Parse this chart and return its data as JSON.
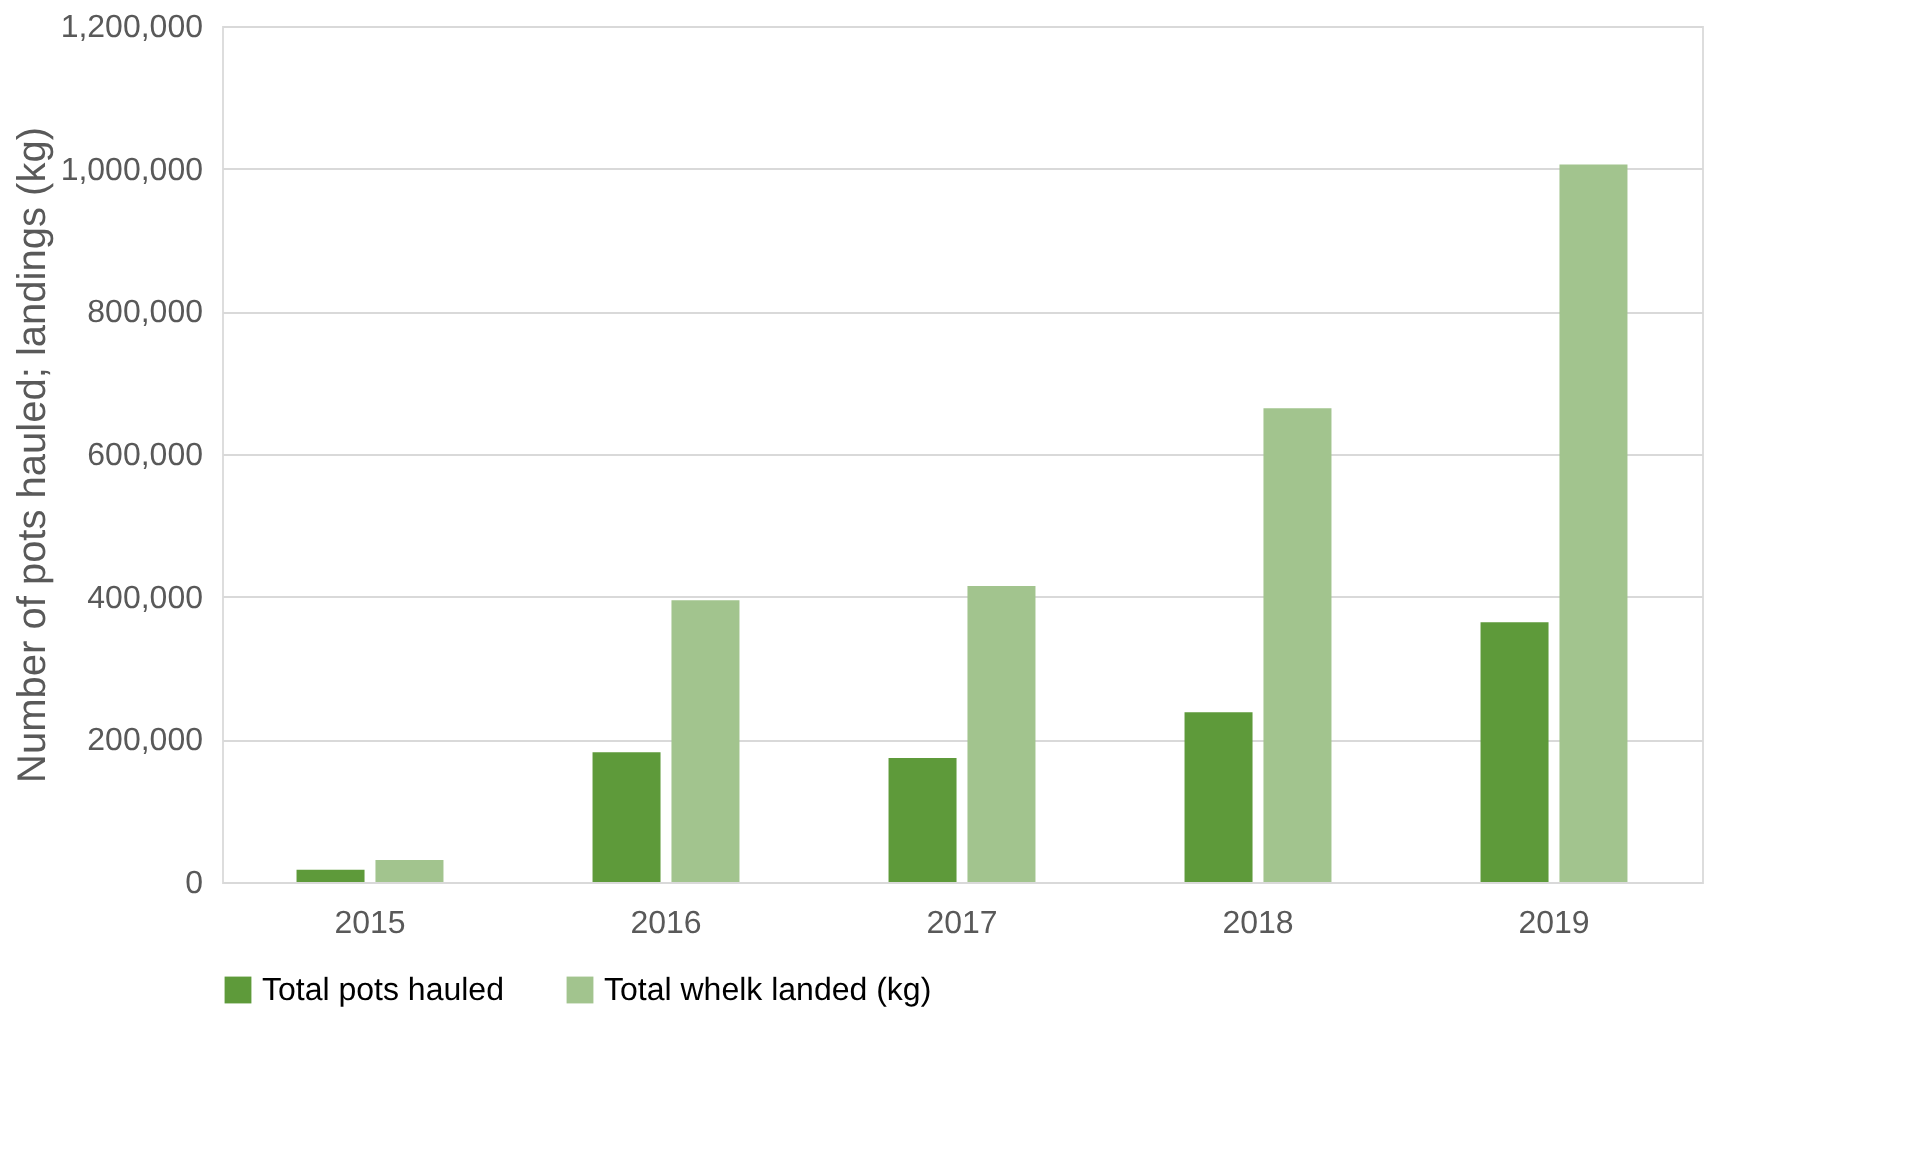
{
  "chart_data": {
    "type": "bar",
    "ylabel": "Number of pots hauled; landings (kg)",
    "categories": [
      "2015",
      "2016",
      "2017",
      "2018",
      "2019"
    ],
    "series": [
      {
        "name": "Total pots hauled",
        "color": "#5e9a3a",
        "values": [
          17000,
          182000,
          174000,
          238000,
          364000
        ]
      },
      {
        "name": "Total whelk landed (kg)",
        "color": "#a2c48e",
        "values": [
          31000,
          395000,
          415000,
          664000,
          1006000
        ]
      }
    ],
    "ylim": [
      0,
      1200000
    ],
    "yticks": [
      {
        "value": 0,
        "label": "0"
      },
      {
        "value": 200000,
        "label": "200,000"
      },
      {
        "value": 400000,
        "label": "400,000"
      },
      {
        "value": 600000,
        "label": "600,000"
      },
      {
        "value": 800000,
        "label": "800,000"
      },
      {
        "value": 1000000,
        "label": "1,000,000"
      },
      {
        "value": 1200000,
        "label": "1,200,000"
      }
    ],
    "grid": "y",
    "legend": "bottom"
  }
}
